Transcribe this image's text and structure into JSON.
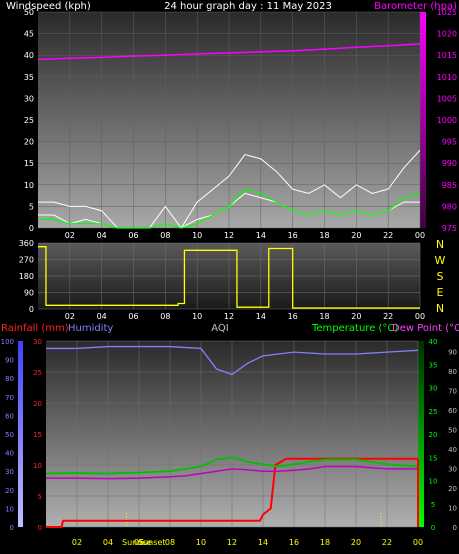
{
  "panel1": {
    "left_title": "Windspeed (kph)",
    "center_title": "24 hour graph day : 11 May 2023",
    "right_title": "Barometer (hpa)",
    "left_ticks": [
      "0",
      "5",
      "10",
      "15",
      "20",
      "25",
      "30",
      "35",
      "40",
      "45",
      "50"
    ],
    "right_ticks": [
      "975",
      "980",
      "985",
      "990",
      "995",
      "1000",
      "1005",
      "1010",
      "1015",
      "1020",
      "1025"
    ],
    "x_ticks": [
      "02",
      "04",
      "06",
      "08",
      "10",
      "12",
      "14",
      "16",
      "18",
      "20",
      "22",
      "00"
    ]
  },
  "panel2": {
    "left_ticks": [
      "0",
      "90",
      "180",
      "270",
      "360"
    ],
    "x_ticks": [
      "02",
      "04",
      "06",
      "08",
      "10",
      "12",
      "14",
      "16",
      "18",
      "20",
      "22",
      "00"
    ],
    "compass": [
      "N",
      "W",
      "S",
      "E",
      "N"
    ]
  },
  "panel3": {
    "rain_label": "Rainfall (mm)",
    "hum_label": "Humidity",
    "aqi_label": "AQI",
    "temp_label": "Temperature (°C)",
    "dew_label": "Dew Point (°C)",
    "hum_ticks": [
      "0",
      "10",
      "20",
      "30",
      "40",
      "50",
      "60",
      "70",
      "80",
      "90",
      "100"
    ],
    "rain_ticks": [
      "0",
      "5",
      "10",
      "15",
      "20",
      "25",
      "30"
    ],
    "temp_ticks": [
      "0",
      "5",
      "10",
      "15",
      "20",
      "25",
      "30",
      "35",
      "40"
    ],
    "aqi_ticks": [
      "0",
      "10",
      "20",
      "30",
      "40",
      "50",
      "60",
      "70",
      "80",
      "90"
    ],
    "x_ticks": [
      "02",
      "04",
      "06",
      "08",
      "10",
      "12",
      "14",
      "16",
      "18",
      "20",
      "22",
      "00"
    ],
    "sunrise_label": "Sunrise",
    "sunset_label": "Sunset"
  },
  "colors": {
    "wind": "#ffffff",
    "gust": "#ffffff",
    "wind_avg": "#00ff00",
    "barometer": "#ff00ff",
    "direction": "#ffff00",
    "rain": "#ff0000",
    "humidity": "#8080ff",
    "temperature": "#00c000",
    "dewpoint": "#c000c0",
    "axis_text": "#ffffff"
  },
  "chart_data": [
    {
      "type": "line",
      "x_unit": "hour",
      "xlim": [
        0,
        24
      ],
      "y_left_lim": [
        0,
        50
      ],
      "y_right_lim": [
        975,
        1025
      ],
      "series": [
        {
          "axis": "right",
          "x": [
            0,
            2,
            4,
            6,
            8,
            10,
            12,
            14,
            16,
            18,
            20,
            22,
            24
          ],
          "values": [
            1014,
            1014.3,
            1014.5,
            1014.8,
            1015,
            1015.3,
            1015.5,
            1015.8,
            1016,
            1016.4,
            1016.8,
            1017.2,
            1017.6
          ]
        },
        {
          "axis": "left",
          "x": [
            0,
            1,
            2,
            3,
            4,
            5,
            6,
            7,
            8,
            9,
            10,
            11,
            12,
            13,
            14,
            15,
            16,
            17,
            18,
            19,
            20,
            21,
            22,
            23,
            24
          ],
          "values": [
            3,
            3,
            1,
            2,
            1,
            0,
            0,
            0,
            1,
            0,
            2,
            3,
            5,
            8,
            7,
            6,
            4,
            3,
            4,
            3,
            4,
            3,
            4,
            6,
            6
          ]
        },
        {
          "axis": "left",
          "x": [
            0,
            1,
            2,
            3,
            4,
            5,
            6,
            7,
            8,
            9,
            10,
            11,
            12,
            13,
            14,
            15,
            16,
            17,
            18,
            19,
            20,
            21,
            22,
            23,
            24
          ],
          "values": [
            6,
            6,
            5,
            5,
            4,
            0,
            0,
            0,
            5,
            0,
            6,
            9,
            12,
            17,
            16,
            13,
            9,
            8,
            10,
            7,
            10,
            8,
            9,
            14,
            18
          ]
        },
        {
          "axis": "left",
          "x": [
            0,
            1,
            2,
            3,
            4,
            5,
            6,
            7,
            8,
            9,
            10,
            11,
            12,
            13,
            14,
            15,
            16,
            17,
            18,
            19,
            20,
            21,
            22,
            23,
            24
          ],
          "values": [
            2,
            2,
            1,
            1,
            1,
            0,
            0,
            0,
            1,
            0,
            1,
            3,
            5,
            9,
            8,
            6,
            4,
            3,
            4,
            3,
            4,
            3,
            4,
            7,
            8
          ]
        }
      ]
    },
    {
      "type": "line",
      "x_unit": "hour",
      "xlim": [
        0,
        24
      ],
      "ylim": [
        0,
        360
      ],
      "series": [
        {
          "x": [
            0,
            0.5,
            0.5,
            8.8,
            8.8,
            9.2,
            9.2,
            12.5,
            12.5,
            14.5,
            14.5,
            16,
            16,
            24
          ],
          "values": [
            340,
            340,
            20,
            20,
            30,
            30,
            320,
            320,
            10,
            10,
            330,
            330,
            5,
            5
          ]
        }
      ]
    },
    {
      "type": "line",
      "x_unit": "hour",
      "xlim": [
        0,
        24
      ],
      "y_humidity_lim": [
        0,
        100
      ],
      "y_rain_lim": [
        0,
        30
      ],
      "y_temp_lim": [
        0,
        40
      ],
      "series": [
        {
          "axis": "humidity",
          "x": [
            0,
            2,
            4,
            6,
            8,
            10,
            11,
            12,
            13,
            14,
            15,
            16,
            18,
            20,
            22,
            24
          ],
          "values": [
            96,
            96,
            97,
            97,
            97,
            96,
            85,
            82,
            88,
            92,
            93,
            94,
            93,
            93,
            94,
            95
          ]
        },
        {
          "axis": "rain",
          "x": [
            0,
            1,
            1.1,
            13.8,
            14,
            14.5,
            14.8,
            15.5,
            16,
            17,
            18,
            20,
            22,
            24
          ],
          "values": [
            0,
            0,
            1,
            1,
            2,
            3,
            10,
            11,
            11,
            11,
            11,
            11,
            11,
            11
          ]
        },
        {
          "axis": "temp",
          "x": [
            0,
            2,
            4,
            6,
            8,
            9,
            10,
            11,
            12,
            13,
            14,
            15,
            16,
            17,
            18,
            20,
            22,
            24
          ],
          "values": [
            11.5,
            11.6,
            11.5,
            11.7,
            12,
            12.5,
            13,
            14.5,
            15,
            14,
            13.5,
            13,
            13.5,
            14,
            14.5,
            14.5,
            13.5,
            13
          ]
        },
        {
          "axis": "temp",
          "x": [
            0,
            2,
            4,
            6,
            8,
            9,
            10,
            11,
            12,
            13,
            14,
            15,
            16,
            17,
            18,
            20,
            22,
            24
          ],
          "values": [
            10.5,
            10.5,
            10.4,
            10.5,
            10.8,
            11,
            11.5,
            12,
            12.5,
            12.3,
            12,
            12,
            12.2,
            12.5,
            13,
            13,
            12.5,
            12.5
          ]
        }
      ],
      "annotations": [
        "Sunrise",
        "Sunset"
      ]
    }
  ]
}
